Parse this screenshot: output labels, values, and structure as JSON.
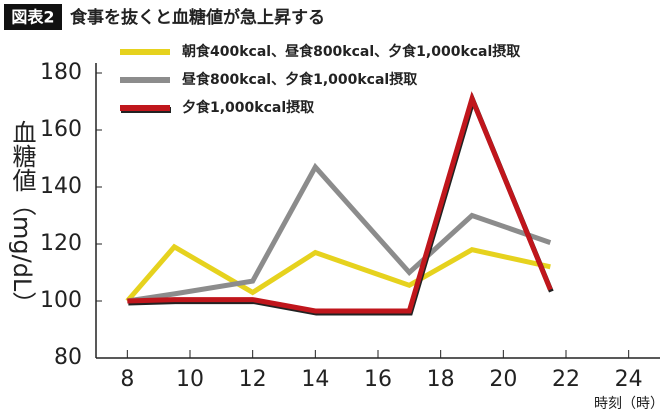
{
  "chart_data": {
    "type": "line",
    "figure_label": "図表2",
    "title": "食事を抜くと血糖値が急上昇する",
    "y_label": "血糖値（mg/dL）",
    "x_label": "時刻（時）",
    "x": [
      8,
      9.5,
      12,
      14,
      17,
      19,
      21.5
    ],
    "series": [
      {
        "name": "朝食400kcal、昼食800kcal、夕食1,000kcal摂取",
        "color": "#e6d21e",
        "values": [
          100,
          119,
          103,
          117,
          105.5,
          118,
          112
        ]
      },
      {
        "name": "昼食800kcal、夕食1,000kcal摂取",
        "color": "#8c8c8c",
        "values": [
          100,
          102.5,
          107,
          147,
          110,
          130,
          120.5
        ]
      },
      {
        "name": "夕食1,000kcal摂取",
        "color": "#c0161c",
        "values": [
          100,
          100.5,
          100.5,
          96.5,
          96.5,
          171,
          104
        ]
      }
    ],
    "xlim": [
      7,
      25
    ],
    "xticks": [
      8,
      10,
      12,
      14,
      16,
      18,
      20,
      22,
      24
    ],
    "ylim": [
      80,
      180
    ],
    "yticks": [
      80,
      100,
      120,
      140,
      160,
      180
    ],
    "legend": "upper left"
  }
}
